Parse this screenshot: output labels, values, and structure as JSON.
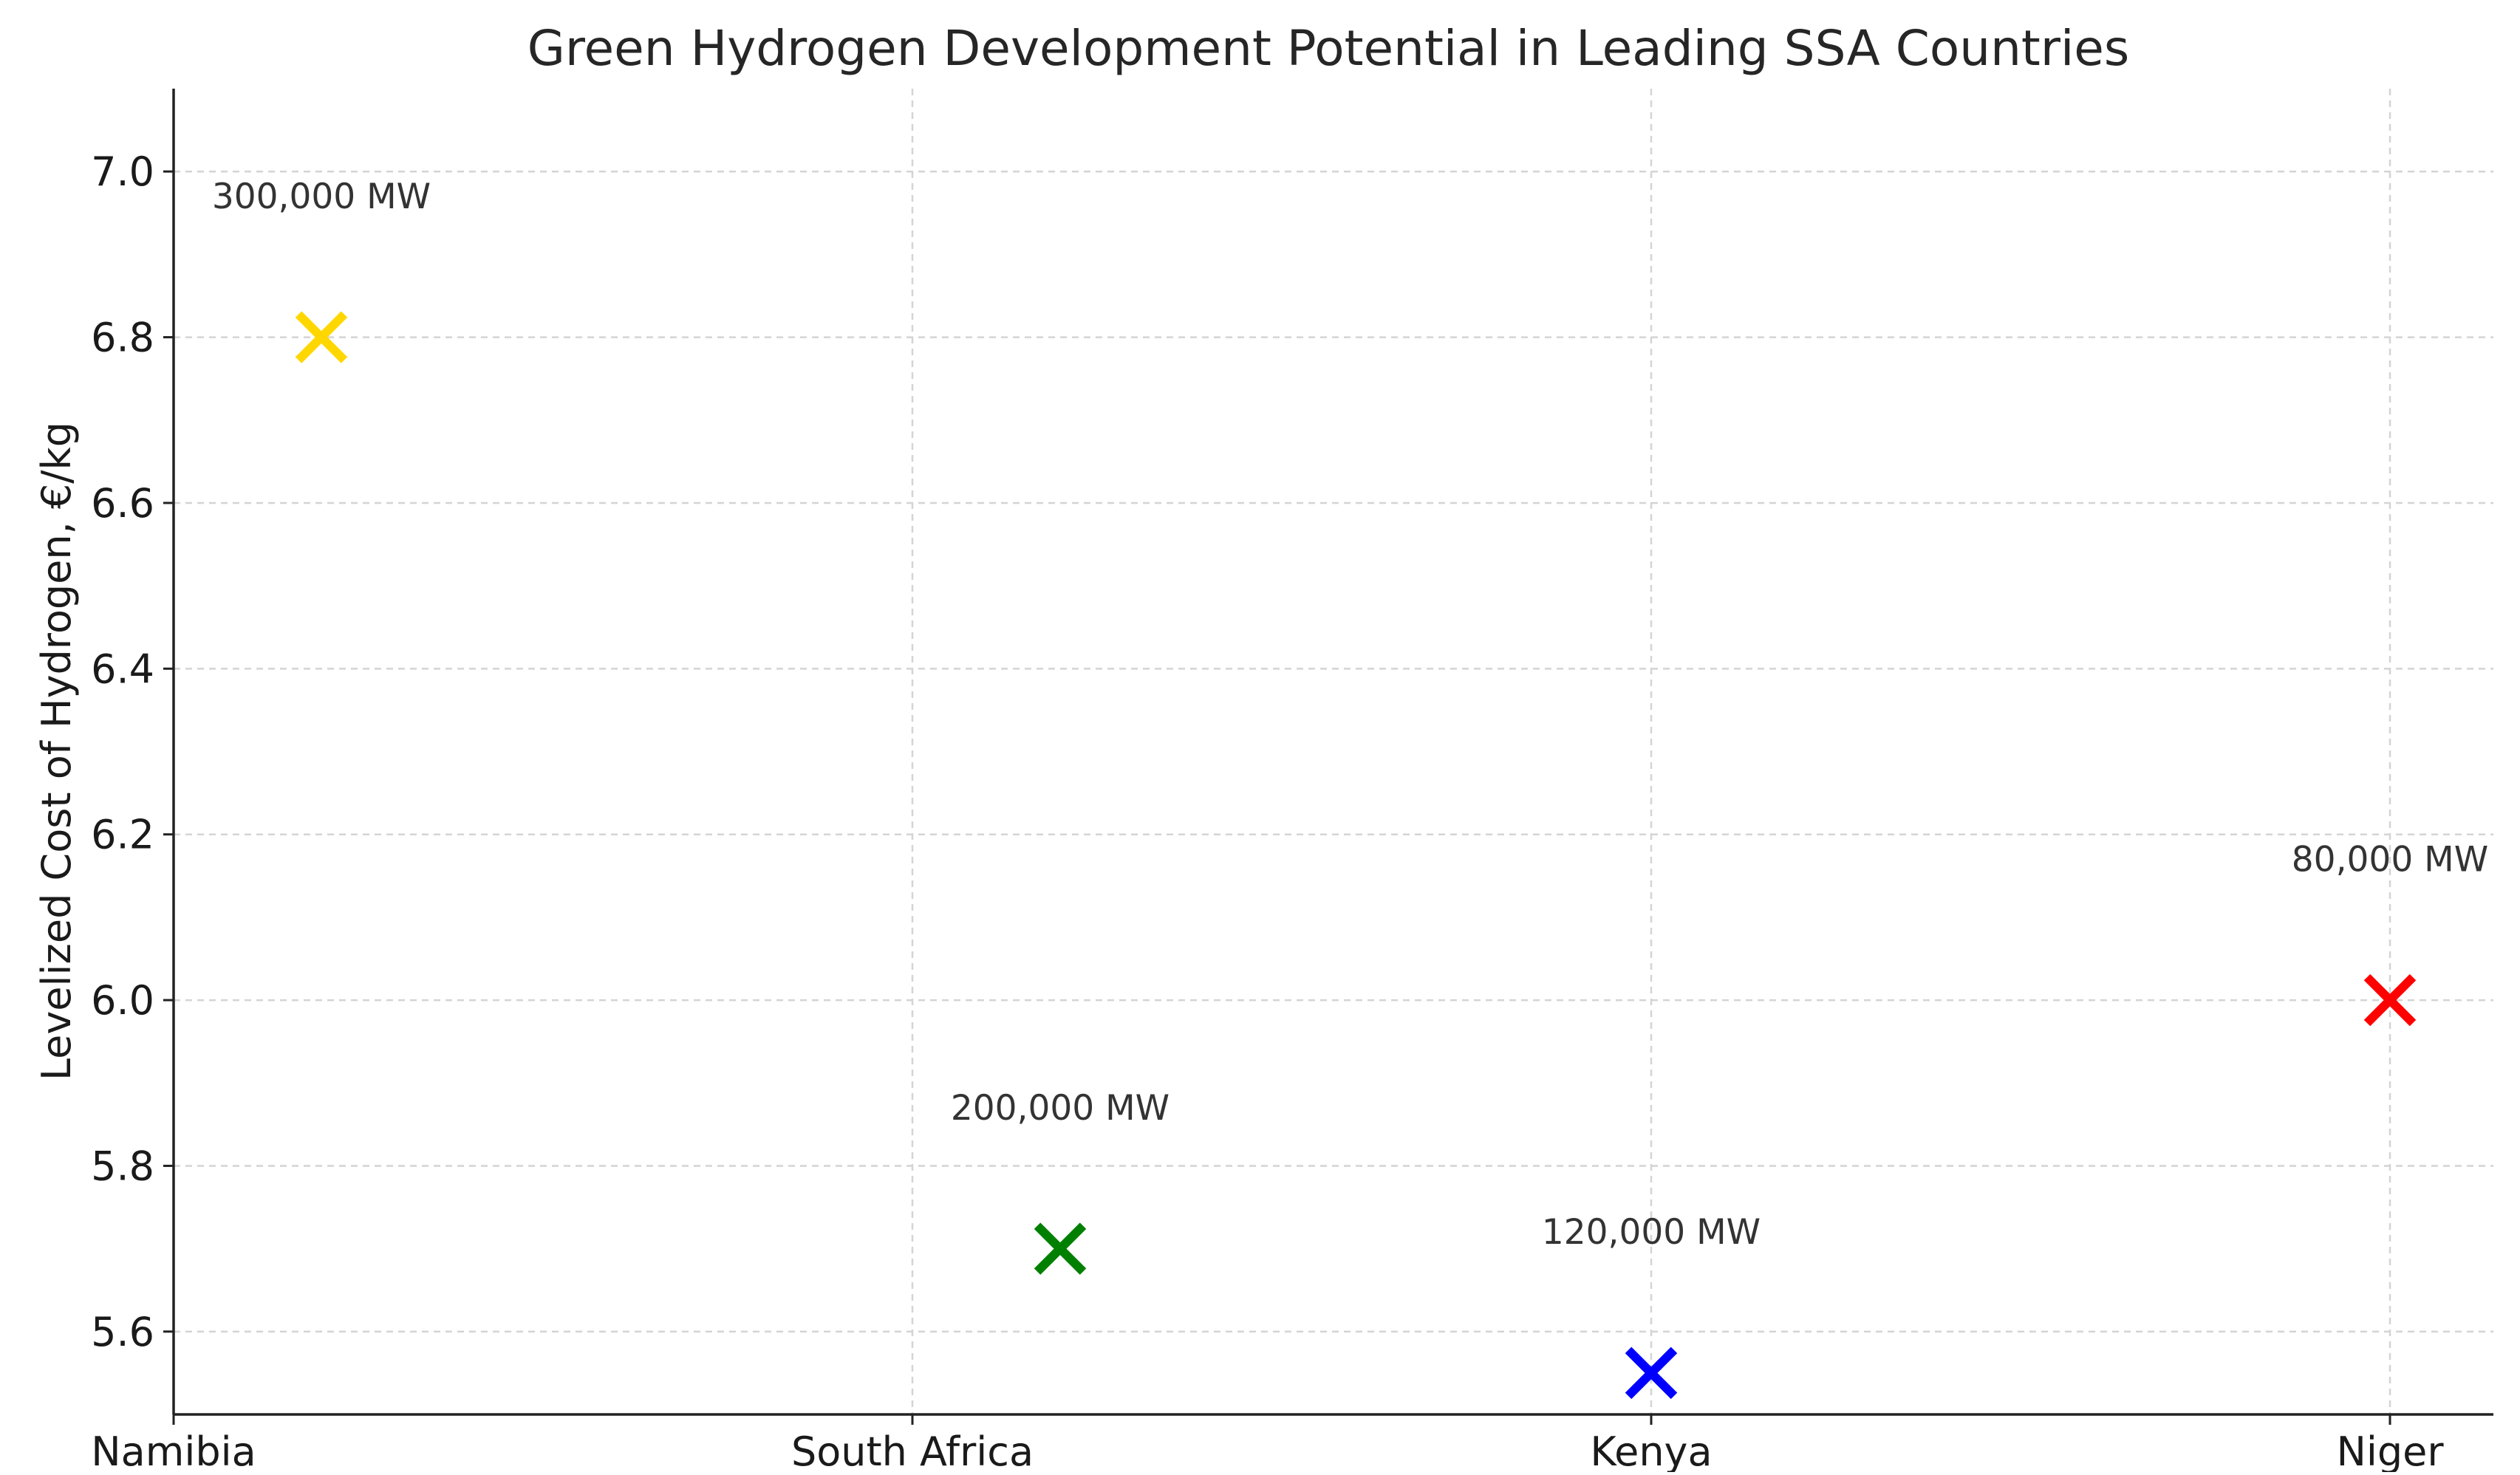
{
  "chart_data": {
    "type": "scatter",
    "title": "Green Hydrogen Development Potential in Leading SSA Countries",
    "xlabel": "",
    "ylabel": "Levelized Cost of Hydrogen, €/kg",
    "categories": [
      "Namibia",
      "South Africa",
      "Kenya",
      "Niger"
    ],
    "ylim": [
      5.5,
      7.1
    ],
    "yticks": [
      "5.6",
      "5.8",
      "6.0",
      "6.2",
      "6.4",
      "6.6",
      "6.8",
      "7.0"
    ],
    "grid": true,
    "marker": "x",
    "points": [
      {
        "x_index": 0.2,
        "y": 6.8,
        "color": "#FFD700",
        "annotation": "300,000 MW",
        "ann_y": 6.97
      },
      {
        "x_index": 1.2,
        "y": 5.7,
        "color": "#008000",
        "annotation": "200,000 MW",
        "ann_y": 5.87
      },
      {
        "x_index": 2.0,
        "y": 5.55,
        "color": "#0000FF",
        "annotation": "120,000 MW",
        "ann_y": 5.72
      },
      {
        "x_index": 3.0,
        "y": 6.0,
        "color": "#FF0000",
        "annotation": "80,000 MW",
        "ann_y": 6.17
      }
    ]
  }
}
